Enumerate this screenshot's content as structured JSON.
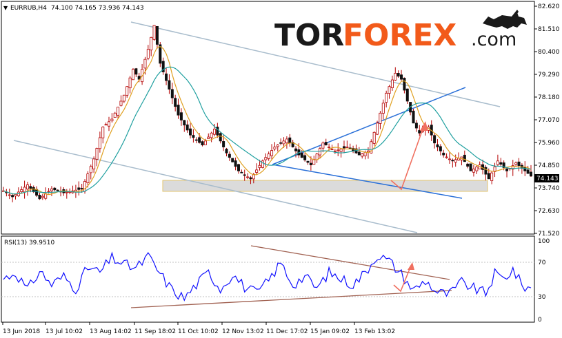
{
  "header": {
    "instrument": "EURRUB,H4",
    "ohlc": "74.100 74.165 73.936 74.143",
    "rsi_label": "RSI(13) 39.9510"
  },
  "brand": {
    "part1": "TOR",
    "part2": "FOREX",
    "part3": ".com"
  },
  "colors": {
    "candle": "#b40000",
    "ma_fast": "#e0a020",
    "ma_slow": "#20a0a0",
    "channel": "#a8bccc",
    "trendline": "#2a70d8",
    "arrow": "#f07060",
    "rsi_line": "#1010ff",
    "rsi_trend": "#a06050",
    "zone_fill": "#d8d8d8",
    "zone_border": "#e0c060",
    "brand_orange": "#f25a1a"
  },
  "chart_data": {
    "type": "candlestick",
    "price_axis": {
      "ticks": [
        "82.620",
        "81.510",
        "80.400",
        "79.290",
        "78.180",
        "77.070",
        "75.960",
        "74.850",
        "73.740",
        "72.630",
        "71.520"
      ],
      "ylim": [
        71.3,
        82.7
      ],
      "current_price": "74.143"
    },
    "rsi_axis": {
      "ticks": [
        "100",
        "70",
        "30",
        "0"
      ],
      "ylim": [
        0,
        100
      ]
    },
    "time_axis": [
      "13 Jun 2018",
      "13 Jul 10:02",
      "13 Aug 14:02",
      "11 Sep 18:02",
      "11 Oct 10:02",
      "12 Nov 13:02",
      "11 Dec 17:02",
      "15 Jan 09:02",
      "13 Feb 13:02"
    ],
    "price_anchors": [
      [
        0,
        73.4
      ],
      [
        3,
        73.1
      ],
      [
        8,
        73.7
      ],
      [
        12,
        73.0
      ],
      [
        16,
        73.5
      ],
      [
        20,
        73.3
      ],
      [
        26,
        73.5
      ],
      [
        30,
        75.0
      ],
      [
        33,
        76.6
      ],
      [
        36,
        77.0
      ],
      [
        40,
        78.2
      ],
      [
        43,
        79.5
      ],
      [
        45,
        79.0
      ],
      [
        48,
        80.5
      ],
      [
        50,
        81.7
      ],
      [
        52,
        79.8
      ],
      [
        55,
        78.5
      ],
      [
        58,
        77.2
      ],
      [
        62,
        76.2
      ],
      [
        66,
        75.7
      ],
      [
        70,
        76.5
      ],
      [
        74,
        75.3
      ],
      [
        78,
        74.4
      ],
      [
        82,
        74.0
      ],
      [
        86,
        74.9
      ],
      [
        90,
        75.6
      ],
      [
        94,
        76.0
      ],
      [
        98,
        75.2
      ],
      [
        102,
        74.7
      ],
      [
        106,
        75.8
      ],
      [
        110,
        75.4
      ],
      [
        114,
        75.6
      ],
      [
        118,
        75.2
      ],
      [
        121,
        75.4
      ],
      [
        124,
        76.8
      ],
      [
        127,
        78.3
      ],
      [
        130,
        79.3
      ],
      [
        132,
        79.0
      ],
      [
        134,
        77.9
      ],
      [
        136,
        76.8
      ],
      [
        138,
        76.3
      ],
      [
        141,
        76.6
      ],
      [
        143,
        75.8
      ],
      [
        146,
        75.2
      ],
      [
        149,
        74.9
      ],
      [
        152,
        75.1
      ],
      [
        155,
        74.4
      ],
      [
        158,
        74.7
      ],
      [
        161,
        74.0
      ],
      [
        164,
        74.9
      ],
      [
        167,
        74.4
      ],
      [
        170,
        74.8
      ],
      [
        173,
        74.4
      ],
      [
        175,
        74.14
      ]
    ],
    "rsi_anchors": [
      [
        0,
        52
      ],
      [
        4,
        60
      ],
      [
        8,
        38
      ],
      [
        12,
        62
      ],
      [
        16,
        45
      ],
      [
        20,
        55
      ],
      [
        24,
        40
      ],
      [
        28,
        66
      ],
      [
        32,
        60
      ],
      [
        36,
        78
      ],
      [
        40,
        70
      ],
      [
        44,
        65
      ],
      [
        48,
        80
      ],
      [
        52,
        58
      ],
      [
        56,
        38
      ],
      [
        60,
        28
      ],
      [
        64,
        45
      ],
      [
        68,
        60
      ],
      [
        72,
        40
      ],
      [
        76,
        58
      ],
      [
        80,
        42
      ],
      [
        84,
        34
      ],
      [
        88,
        50
      ],
      [
        92,
        72
      ],
      [
        96,
        45
      ],
      [
        100,
        55
      ],
      [
        104,
        40
      ],
      [
        108,
        60
      ],
      [
        112,
        52
      ],
      [
        116,
        45
      ],
      [
        120,
        60
      ],
      [
        124,
        82
      ],
      [
        128,
        74
      ],
      [
        132,
        58
      ],
      [
        136,
        38
      ],
      [
        140,
        50
      ],
      [
        144,
        35
      ],
      [
        148,
        33
      ],
      [
        152,
        48
      ],
      [
        156,
        40
      ],
      [
        160,
        34
      ],
      [
        163,
        58
      ],
      [
        166,
        52
      ],
      [
        169,
        64
      ],
      [
        172,
        44
      ],
      [
        175,
        40
      ]
    ]
  }
}
